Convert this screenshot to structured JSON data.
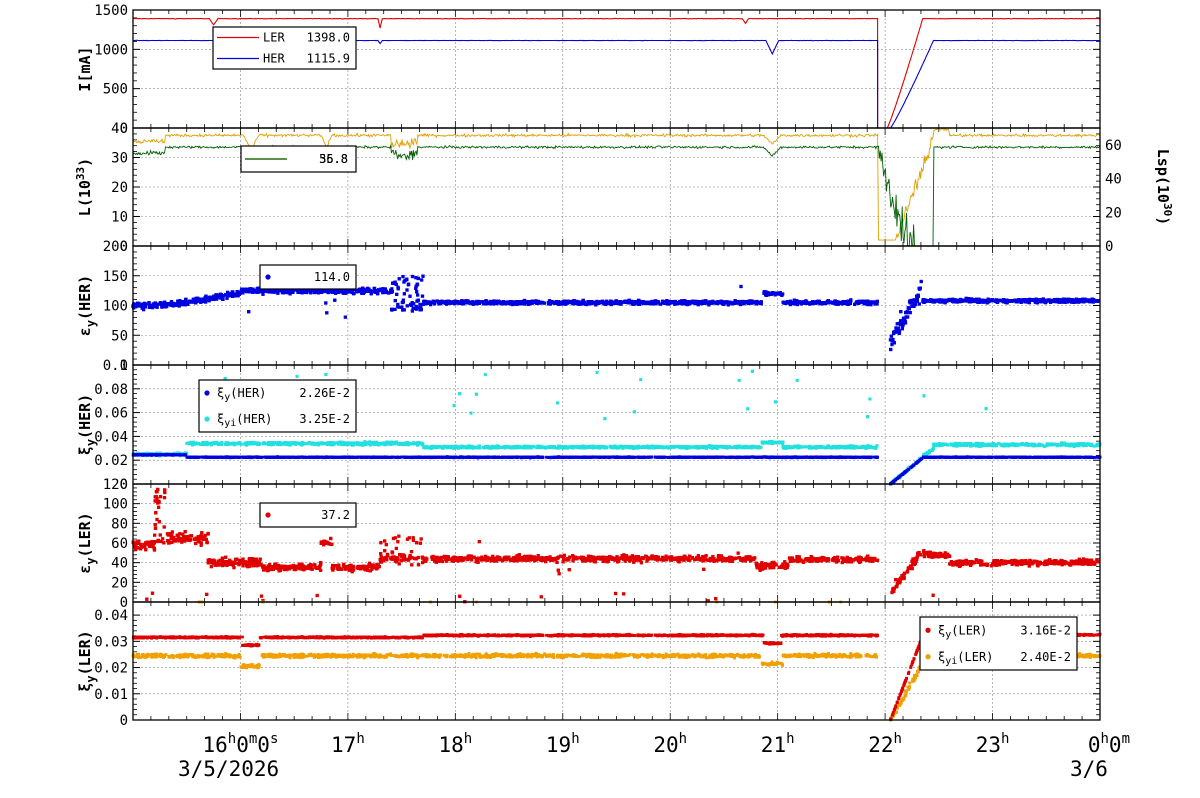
{
  "chart_data": [
    {
      "type": "line",
      "ylabel": "I[mA]",
      "ylim": [
        0,
        1500
      ],
      "yticks": [
        "0",
        "500",
        "1000",
        "1500"
      ],
      "legend": {
        "placement": "top-left",
        "entries": [
          {
            "name": "LER",
            "value": "1398.0",
            "color": "#e00000",
            "marker": "line"
          },
          {
            "name": "HER",
            "value": "1115.9",
            "color": "#0000e0",
            "marker": "line"
          }
        ]
      },
      "series": [
        {
          "name": "LER",
          "color": "#e00000",
          "base": 1390,
          "noise": 5,
          "dips": [
            [
              0.75,
              80,
              0.04
            ],
            [
              17.3,
              120,
              0.02
            ],
            [
              20.7,
              60,
              0.03
            ]
          ],
          "gaps": [
            [
              21.93,
              22.02
            ]
          ],
          "ramp": [
            22.02,
            22.35,
            1390
          ],
          "pts": [
            [
              0,
              1390
            ],
            [
              21.92,
              1390
            ],
            [
              21.93,
              0
            ],
            [
              22.02,
              0
            ],
            [
              22.35,
              1390
            ],
            [
              24,
              1390
            ]
          ]
        },
        {
          "name": "HER",
          "color": "#0000e0",
          "base": 1112,
          "noise": 4,
          "dips": [
            [
              16.05,
              130,
              0.05
            ],
            [
              20.95,
              170,
              0.06
            ],
            [
              17.3,
              40,
              0.02
            ]
          ],
          "gaps": [
            [
              21.93,
              22.02
            ]
          ],
          "ramp": [
            22.05,
            22.45,
            1112
          ]
        }
      ]
    },
    {
      "type": "line",
      "ylabel": "L(10",
      "ylabel_sup": "33",
      "ylabel_end": ")",
      "ylim": [
        0,
        40
      ],
      "yticks": [
        "0",
        "10",
        "20",
        "30",
        "40"
      ],
      "y2label": "Lsp(10",
      "y2label_sup": "30",
      "y2label_end": ")",
      "y2lim": [
        0,
        70
      ],
      "y2ticks": [
        "0",
        "20",
        "40",
        "60"
      ],
      "legend": {
        "placement": "top-left",
        "entries": [
          {
            "name": "",
            "value": "36.8",
            "color": "#e0a000",
            "marker": "line"
          },
          {
            "name": "",
            "value": "55.8",
            "color": "#006000",
            "marker": "line"
          }
        ]
      },
      "series": [
        {
          "name": "",
          "color": "#e0a000",
          "base": 37.5,
          "noise": 0.8
        },
        {
          "name": "",
          "color": "#006000",
          "base": 33.5,
          "noise": 0.7
        }
      ]
    },
    {
      "type": "scatter",
      "ylabel": "εy(HER)",
      "ylim": [
        0,
        200
      ],
      "yticks": [
        "0",
        "50",
        "100",
        "150",
        "200"
      ],
      "legend": {
        "placement": "top-left",
        "entries": [
          {
            "name": "",
            "value": "114.0",
            "color": "#0000e0",
            "marker": "dot"
          }
        ]
      },
      "series": [
        {
          "name": "",
          "color": "#0000e0"
        }
      ]
    },
    {
      "type": "scatter",
      "ylabel": "ξy(HER)",
      "ylim": [
        0,
        0.1
      ],
      "yticks": [
        "0",
        "0.02",
        "0.04",
        "0.06",
        "0.08",
        "0.1"
      ],
      "legend": {
        "placement": "top-left",
        "entries": [
          {
            "name": "ξy(HER)",
            "value": "2.26E-2",
            "color": "#0000e0",
            "marker": "dot"
          },
          {
            "name": "ξyi(HER)",
            "value": "3.25E-2",
            "color": "#20e0e0",
            "marker": "dot"
          }
        ]
      },
      "series": [
        {
          "name": "ξy(HER)",
          "color": "#0000e0"
        },
        {
          "name": "ξyi(HER)",
          "color": "#20e0e0"
        }
      ]
    },
    {
      "type": "scatter",
      "ylabel": "εy(LER)",
      "ylim": [
        0,
        120
      ],
      "yticks": [
        "0",
        "20",
        "40",
        "60",
        "80",
        "100",
        "120"
      ],
      "legend": {
        "placement": "top-left",
        "entries": [
          {
            "name": "",
            "value": "37.2",
            "color": "#e00000",
            "marker": "dot"
          }
        ]
      },
      "series": [
        {
          "name": "",
          "color": "#e00000"
        }
      ]
    },
    {
      "type": "scatter",
      "ylabel": "ξy(LER)",
      "ylim": [
        0,
        0.045
      ],
      "yticks": [
        "0",
        "0.01",
        "0.02",
        "0.03",
        "0.04"
      ],
      "legend": {
        "placement": "top-right",
        "entries": [
          {
            "name": "ξy(LER)",
            "value": "3.16E-2",
            "color": "#e00000",
            "marker": "dot"
          },
          {
            "name": "ξyi(LER)",
            "value": "2.40E-2",
            "color": "#f0a000",
            "marker": "dot"
          }
        ]
      },
      "series": [
        {
          "name": "ξy(LER)",
          "color": "#e00000"
        },
        {
          "name": "ξyi(LER)",
          "color": "#f0a000"
        }
      ]
    }
  ],
  "x_axis": {
    "range_hours": [
      15.0,
      24.0
    ],
    "ticks": [
      {
        "h": 16,
        "main": "16",
        "sup": "h",
        "extra": "0",
        "sup2": "m",
        "extra2": "0",
        "sup3": "s"
      },
      {
        "h": 17,
        "main": "17",
        "sup": "h"
      },
      {
        "h": 18,
        "main": "18",
        "sup": "h"
      },
      {
        "h": 19,
        "main": "19",
        "sup": "h"
      },
      {
        "h": 20,
        "main": "20",
        "sup": "h"
      },
      {
        "h": 21,
        "main": "21",
        "sup": "h"
      },
      {
        "h": 22,
        "main": "22",
        "sup": "h"
      },
      {
        "h": 23,
        "main": "23",
        "sup": "h"
      },
      {
        "h": 24,
        "main": "0",
        "sup": "h",
        "extra": "0",
        "sup2": "m"
      }
    ],
    "date_left": "3/5/2026",
    "date_right": "3/6"
  }
}
